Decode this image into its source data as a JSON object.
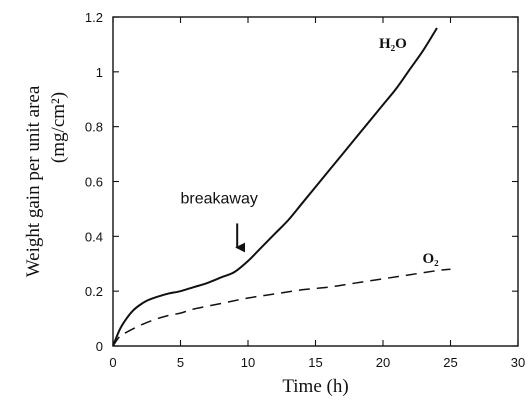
{
  "chart_data": {
    "type": "line",
    "title": "",
    "xlabel": "Time (h)",
    "ylabel_line1": "Weight gain per unit area",
    "ylabel_line2": "(mg/cm²)",
    "xlim": [
      0,
      30
    ],
    "ylim": [
      0,
      1.2
    ],
    "xticks": [
      "0",
      "5",
      "10",
      "15",
      "20",
      "25",
      "30"
    ],
    "yticks": [
      "0",
      "0.2",
      "0.4",
      "0.6",
      "0.8",
      "1",
      "1.2"
    ],
    "grid": false,
    "series": [
      {
        "name": "H₂O",
        "style": "solid",
        "color": "#111111",
        "x": [
          0,
          0.5,
          1,
          1.5,
          2,
          2.5,
          3,
          4,
          5,
          6,
          7,
          8,
          9,
          10,
          11,
          12,
          13,
          14,
          15,
          16,
          17,
          18,
          19,
          20,
          21,
          22,
          23,
          24
        ],
        "y": [
          0,
          0.06,
          0.1,
          0.13,
          0.15,
          0.165,
          0.175,
          0.19,
          0.2,
          0.215,
          0.23,
          0.25,
          0.27,
          0.31,
          0.36,
          0.41,
          0.46,
          0.52,
          0.58,
          0.64,
          0.7,
          0.76,
          0.82,
          0.88,
          0.94,
          1.01,
          1.08,
          1.16
        ]
      },
      {
        "name": "O₂",
        "style": "dashed",
        "color": "#111111",
        "x": [
          0,
          0.5,
          1,
          2,
          3,
          4,
          5,
          6,
          8,
          10,
          12,
          14,
          16,
          18,
          20,
          22,
          24,
          25
        ],
        "y": [
          0,
          0.035,
          0.05,
          0.075,
          0.095,
          0.11,
          0.12,
          0.135,
          0.155,
          0.175,
          0.19,
          0.205,
          0.215,
          0.23,
          0.245,
          0.26,
          0.275,
          0.28
        ]
      }
    ],
    "annotations": [
      {
        "text": "breakaway",
        "arrow_to": {
          "x": 9.2,
          "y": 0.33
        },
        "text_at": {
          "x": 9.2,
          "y": 0.52
        }
      }
    ]
  }
}
